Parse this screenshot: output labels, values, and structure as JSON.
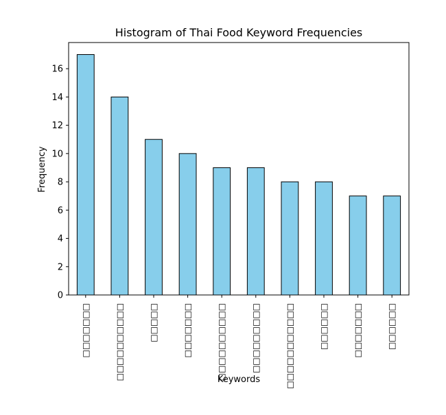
{
  "chart_data": {
    "type": "bar",
    "title": "Histogram of Thai Food Keyword Frequencies",
    "xlabel": "Keywords",
    "ylabel": "Frequency",
    "categories": [
      "□□□□□□□",
      "□□□□□□□□□□",
      "□□□□□",
      "□□□□□□□",
      "□□□□□□□□□□",
      "□□□□□□□□□",
      "□□□□□□□□□□□",
      "□□□□□□",
      "□□□□□□□",
      "□□□□□□"
    ],
    "values": [
      17,
      14,
      11,
      10,
      9,
      9,
      8,
      8,
      7,
      7
    ],
    "yticks": [
      0,
      2,
      4,
      6,
      8,
      10,
      12,
      14,
      16
    ],
    "ylim": [
      0,
      17.85
    ],
    "grid": false,
    "legend": "none",
    "bar_color": "#87ceeb",
    "edge_color": "#000000"
  }
}
